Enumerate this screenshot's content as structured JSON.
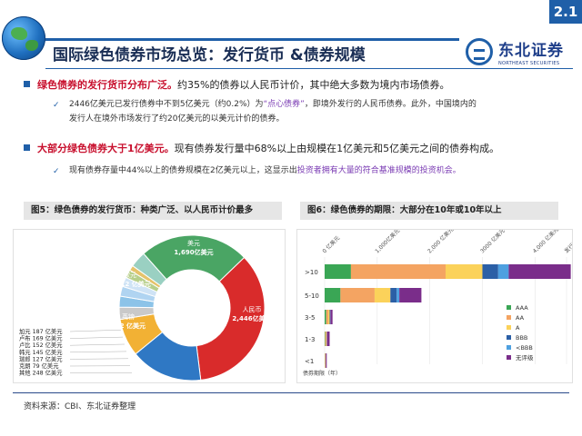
{
  "page_number": "2.1",
  "title": "国际绿色债券市场总览：发行货币 &债券规模",
  "logo": {
    "name": "东北证券",
    "sub": "NORTHEAST SECURITIES"
  },
  "bullets": [
    {
      "lead": "绿色债券的发行货币分布广泛。",
      "text": "约35%的债券以人民币计价，其中绝大多数为境内市场债券。"
    },
    {
      "lead": "大部分绿色债券大于1亿美元。",
      "text": "现有债券发行量中68%以上由规模在1亿美元和5亿美元之间的债券构成。"
    }
  ],
  "subpoints": [
    {
      "line1_a": "2446亿美元已发行债券中不到5亿美元（约0.2%）为",
      "line1_hl": "“点心债券”",
      "line1_b": "，即境外发行的人民币债券。此外，中国境内的",
      "line2": "发行人在境外市场发行了约20亿美元的以美元计价的债券。"
    },
    {
      "text_a": "现有债券存量中44%以上的债券规模在2亿美元以上，这显示出",
      "text_hl": "投资者拥有大量的符合基准规模的投资机会。"
    }
  ],
  "check_mark": "✓",
  "fig5": {
    "caption": "图5：绿色债券的发行货币：种类广泛、以人民币计价最多",
    "labels": {
      "usd": "美元",
      "usd_val": "1,690亿美元",
      "cny": "人民币",
      "cny_val": "2,446亿美元",
      "eur": "欧元",
      "eur_val": "1,112 亿美元",
      "gbp": "英镑",
      "gbp_val": "582 亿美元"
    },
    "side_labels": [
      "加元 187 亿美元",
      "卢布 169 亿美元",
      "卢比 152 亿美元",
      "韩元 145 亿美元",
      "瑞郎 127 亿美元",
      "克朗 79 亿美元",
      "其他 248 亿美元"
    ]
  },
  "fig6": {
    "caption": "图6：绿色债券的期限：大部分在10年或10年以上",
    "axis_ticks": [
      "0 亿美元",
      "1,000亿美元",
      "2,000 亿美元",
      "3000 亿美元",
      "4,000 亿美元",
      "发行额"
    ],
    "xlabel": "债券期限（年）",
    "legend": [
      "AAA",
      "AA",
      "A",
      "BBB",
      "<BBB",
      "无评级"
    ]
  },
  "source": "资料来源：CBI、东北证券整理",
  "colors": {
    "usd": "#4aa564",
    "cny": "#d92b2b",
    "eur": "#2f78c4",
    "gbp": "#f2b134",
    "cad": "#c9c9c9",
    "rub": "#8cc3e8",
    "inr": "#b0d4f1",
    "krw": "#cfe3f5",
    "chf": "#b7cf8a",
    "sek": "#e5c36a",
    "other": "#9ad0c2"
  },
  "chart_data": [
    {
      "type": "pie",
      "title": "图5：绿色债券的发行货币：种类广泛、以人民币计价最多",
      "categories": [
        "美元",
        "人民币",
        "欧元",
        "英镑",
        "加元",
        "卢布",
        "卢比",
        "韩元",
        "瑞郎",
        "克朗",
        "其他"
      ],
      "values": [
        1690,
        2446,
        1112,
        582,
        187,
        169,
        152,
        145,
        127,
        79,
        248
      ],
      "unit": "亿美元"
    },
    {
      "type": "bar",
      "orientation": "horizontal",
      "stacked": true,
      "title": "图6：绿色债券的期限：大部分在10年或10年以上",
      "categories": [
        ">10",
        "5-10",
        "3-5",
        "1-3",
        "<1"
      ],
      "xlabel": "发行额",
      "ylabel": "债券期限（年）",
      "xlim": [
        0,
        4600
      ],
      "series": [
        {
          "name": "AAA",
          "color": "#3aa655",
          "values": [
            500,
            300,
            30,
            10,
            5
          ]
        },
        {
          "name": "AA",
          "color": "#f4a462",
          "values": [
            1800,
            650,
            40,
            20,
            10
          ]
        },
        {
          "name": "A",
          "color": "#fbd25a",
          "values": [
            700,
            300,
            25,
            10,
            5
          ]
        },
        {
          "name": "BBB",
          "color": "#2b5fa6",
          "values": [
            300,
            120,
            10,
            5,
            0
          ]
        },
        {
          "name": "<BBB",
          "color": "#4ea0e0",
          "values": [
            200,
            50,
            5,
            0,
            0
          ]
        },
        {
          "name": "无评级",
          "color": "#7a2d8a",
          "values": [
            1180,
            420,
            40,
            50,
            20
          ]
        }
      ]
    }
  ]
}
